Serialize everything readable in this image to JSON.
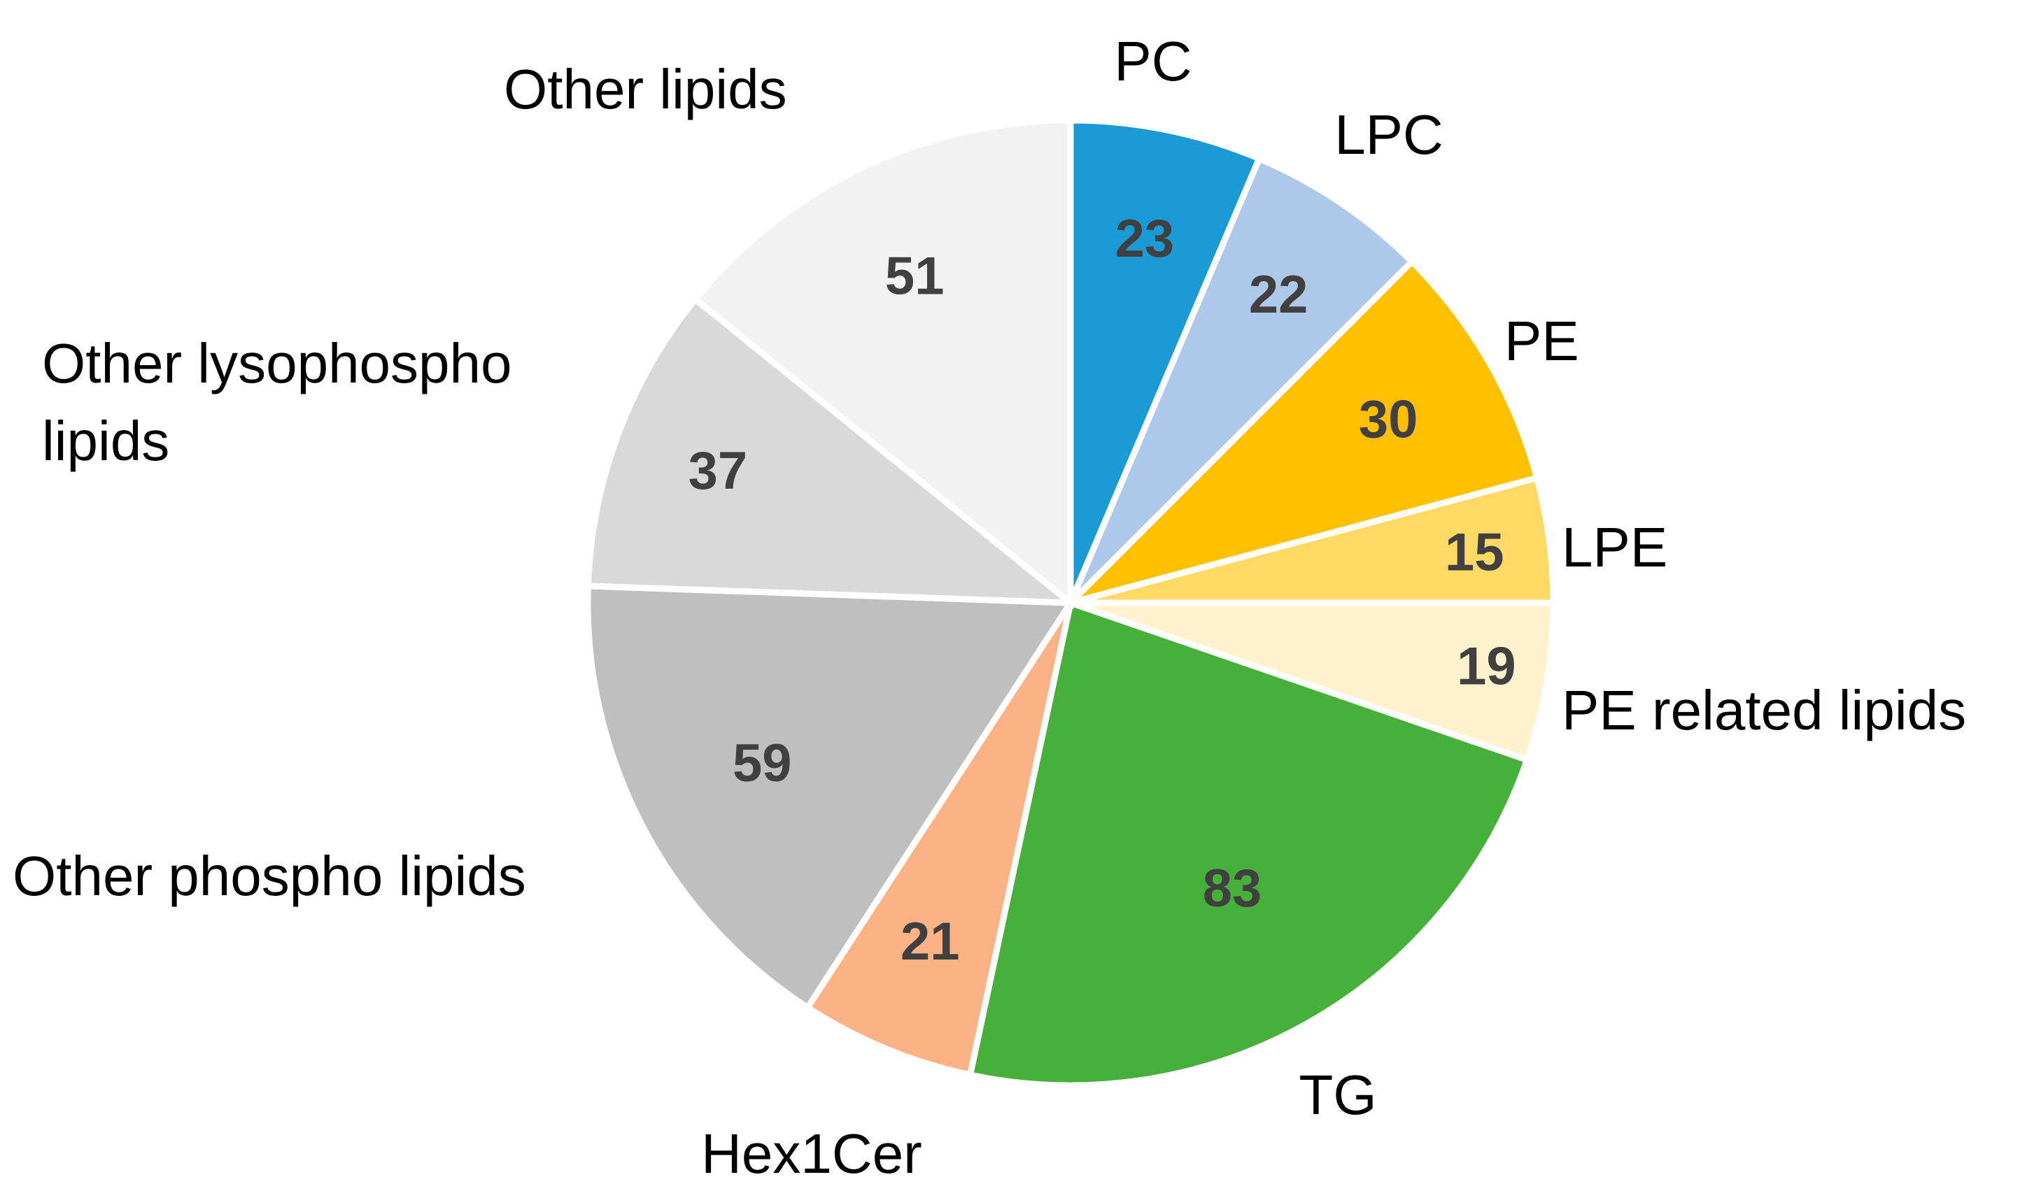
{
  "chart_data": {
    "type": "pie",
    "start_angle": "12 o'clock",
    "direction": "clockwise",
    "slices": [
      {
        "label": "PC",
        "value": 23,
        "color": "#1B9AD6"
      },
      {
        "label": "LPC",
        "value": 22,
        "color": "#AEC8EA"
      },
      {
        "label": "PE",
        "value": 30,
        "color": "#FFC000"
      },
      {
        "label": "LPE",
        "value": 15,
        "color": "#FFD966"
      },
      {
        "label": "PE related lipids",
        "value": 19,
        "color": "#FFF2CC"
      },
      {
        "label": "TG",
        "value": 83,
        "color": "#47B03A"
      },
      {
        "label": "Hex1Cer",
        "value": 21,
        "color": "#FBB284"
      },
      {
        "label": "Other phospho lipids",
        "value": 59,
        "color": "#BFBFBF"
      },
      {
        "label": "Other lysophospho lipids",
        "label_lines": [
          "Other lysophospho",
          "lipids"
        ],
        "value": 37,
        "color": "#D9D9D9"
      },
      {
        "label": "Other lipids",
        "value": 51,
        "color": "#F2F2F2"
      }
    ]
  }
}
